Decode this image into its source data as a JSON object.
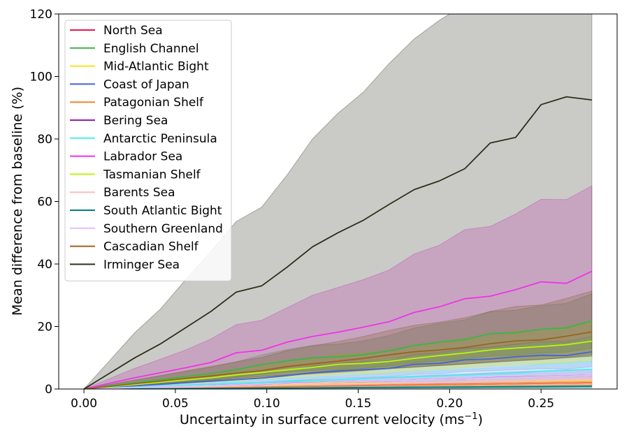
{
  "chart_data": {
    "type": "line",
    "title": "",
    "xlabel": "Uncertainty in surface current velocity (ms",
    "xlabel_superscript": "−1",
    "xlabel_suffix": ")",
    "ylabel": "Mean difference from baseline (%)",
    "xlim": [
      -0.0138,
      0.2916
    ],
    "ylim": [
      0,
      120
    ],
    "x_ticks": [
      0.0,
      0.05,
      0.1,
      0.15,
      0.2,
      0.25
    ],
    "x_tick_labels": [
      "0.00",
      "0.05",
      "0.10",
      "0.15",
      "0.20",
      "0.25"
    ],
    "y_ticks": [
      0,
      20,
      40,
      60,
      80,
      100,
      120
    ],
    "y_tick_labels": [
      "0",
      "20",
      "40",
      "60",
      "80",
      "100",
      "120"
    ],
    "grid": false,
    "legend_position": "top-left",
    "x": [
      0.0,
      0.0139,
      0.0278,
      0.0417,
      0.0556,
      0.0694,
      0.0833,
      0.0972,
      0.1111,
      0.125,
      0.1389,
      0.1528,
      0.1667,
      0.1806,
      0.1944,
      0.2083,
      0.2222,
      0.2361,
      0.25,
      0.2639,
      0.2778
    ],
    "series": [
      {
        "name": "North Sea",
        "color": "#e6194b",
        "values": [
          0,
          0.1,
          0.2,
          0.3,
          0.4,
          0.5,
          0.6,
          0.7,
          0.8,
          0.9,
          1.0,
          1.1,
          1.2,
          1.3,
          1.4,
          1.5,
          1.6,
          1.7,
          1.8,
          1.9,
          2.0
        ],
        "band_low": [
          0,
          0.05,
          0.1,
          0.15,
          0.2,
          0.25,
          0.3,
          0.35,
          0.4,
          0.45,
          0.5,
          0.55,
          0.6,
          0.65,
          0.7,
          0.75,
          0.8,
          0.85,
          0.9,
          0.95,
          1.0
        ],
        "band_high": [
          0,
          0.2,
          0.4,
          0.5,
          0.6,
          0.8,
          1.0,
          1.1,
          1.2,
          1.4,
          1.5,
          1.7,
          1.8,
          2.0,
          2.1,
          2.3,
          2.4,
          2.6,
          2.7,
          2.9,
          3.0
        ]
      },
      {
        "name": "English Channel",
        "color": "#3cb44b",
        "values": [
          0,
          1.0,
          2.0,
          3.0,
          4.0,
          5.0,
          6.2,
          7.8,
          9.0,
          10.0,
          10.3,
          11.0,
          12.2,
          13.9,
          15.0,
          15.8,
          17.7,
          18.0,
          19.1,
          19.6,
          21.8
        ],
        "band_low": [
          0,
          0.6,
          1.2,
          1.8,
          2.4,
          3.0,
          3.7,
          4.7,
          5.4,
          6.0,
          6.2,
          6.6,
          7.3,
          8.3,
          9.0,
          9.5,
          10.6,
          10.8,
          11.5,
          11.8,
          13.1
        ],
        "band_high": [
          0,
          1.4,
          2.8,
          4.2,
          5.6,
          7.0,
          8.7,
          10.9,
          12.6,
          14.0,
          14.4,
          15.4,
          17.1,
          19.5,
          21.0,
          22.1,
          24.8,
          25.2,
          26.7,
          27.4,
          30.5
        ]
      },
      {
        "name": "Mid-Atlantic Bight",
        "color": "#ffe119",
        "values": [
          0,
          0.2,
          0.4,
          0.6,
          0.8,
          1.0,
          1.2,
          1.4,
          1.5,
          1.6,
          1.7,
          1.8,
          1.9,
          2.0,
          2.1,
          2.2,
          2.3,
          2.4,
          2.5,
          2.6,
          2.7
        ],
        "band_low": [
          0,
          0.1,
          0.2,
          0.3,
          0.4,
          0.5,
          0.6,
          0.7,
          0.8,
          0.8,
          0.9,
          0.9,
          1.0,
          1.0,
          1.1,
          1.1,
          1.2,
          1.2,
          1.3,
          1.3,
          1.4
        ],
        "band_high": [
          0,
          0.3,
          0.6,
          0.9,
          1.2,
          1.5,
          1.8,
          2.1,
          2.3,
          2.4,
          2.6,
          2.7,
          2.9,
          3.0,
          3.2,
          3.3,
          3.5,
          3.6,
          3.8,
          3.9,
          4.1
        ]
      },
      {
        "name": "Coast of Japan",
        "color": "#4363d8",
        "values": [
          0,
          0.5,
          1.0,
          1.5,
          2.0,
          2.5,
          3.0,
          3.5,
          4.3,
          5.2,
          5.8,
          6.2,
          6.6,
          7.9,
          8.2,
          9.3,
          9.6,
          10.3,
          10.8,
          10.7,
          11.9
        ],
        "band_low": [
          0,
          0.3,
          0.6,
          0.9,
          1.2,
          1.5,
          1.8,
          2.1,
          2.6,
          3.1,
          3.5,
          3.7,
          4.0,
          4.7,
          4.9,
          5.6,
          5.8,
          6.2,
          6.5,
          6.4,
          7.1
        ],
        "band_high": [
          0,
          0.7,
          1.4,
          2.1,
          2.8,
          3.5,
          4.2,
          4.9,
          6.0,
          7.3,
          8.1,
          8.7,
          9.2,
          11.1,
          11.5,
          13.0,
          13.4,
          14.4,
          15.1,
          15.0,
          16.7
        ]
      },
      {
        "name": "Patagonian Shelf",
        "color": "#f58231",
        "values": [
          0,
          0.1,
          0.2,
          0.3,
          0.4,
          0.5,
          0.6,
          0.7,
          0.8,
          0.9,
          1.0,
          1.1,
          1.2,
          1.3,
          1.4,
          1.5,
          1.6,
          1.7,
          1.8,
          1.9,
          2.0
        ],
        "band_low": [
          0,
          0.05,
          0.1,
          0.15,
          0.2,
          0.25,
          0.3,
          0.35,
          0.4,
          0.45,
          0.5,
          0.55,
          0.6,
          0.65,
          0.7,
          0.75,
          0.8,
          0.85,
          0.9,
          0.95,
          1.0
        ],
        "band_high": [
          0,
          0.2,
          0.3,
          0.5,
          0.6,
          0.8,
          0.9,
          1.1,
          1.2,
          1.4,
          1.5,
          1.7,
          1.8,
          2.0,
          2.1,
          2.3,
          2.4,
          2.6,
          2.7,
          2.9,
          3.0
        ]
      },
      {
        "name": "Bering Sea",
        "color": "#911eb4",
        "values": [
          0,
          0.25,
          0.5,
          0.7,
          0.9,
          1.1,
          1.3,
          1.5,
          1.8,
          2.0,
          2.2,
          2.4,
          2.6,
          2.9,
          3.1,
          3.3,
          3.6,
          3.8,
          4.0,
          4.2,
          4.4
        ],
        "band_low": [
          0,
          0.15,
          0.3,
          0.4,
          0.5,
          0.6,
          0.7,
          0.8,
          1.0,
          1.1,
          1.2,
          1.3,
          1.4,
          1.6,
          1.7,
          1.8,
          2.0,
          2.1,
          2.2,
          2.3,
          2.4
        ],
        "band_high": [
          0,
          0.35,
          0.7,
          1.0,
          1.3,
          1.6,
          1.9,
          2.2,
          2.6,
          2.9,
          3.2,
          3.5,
          3.8,
          4.2,
          4.5,
          4.8,
          5.2,
          5.5,
          5.8,
          6.1,
          6.4
        ]
      },
      {
        "name": "Antarctic Peninsula",
        "color": "#46f0f0",
        "values": [
          0,
          0.3,
          0.6,
          0.9,
          1.2,
          1.5,
          1.8,
          2.1,
          2.4,
          2.7,
          3.0,
          3.3,
          3.6,
          3.9,
          4.2,
          4.5,
          4.8,
          5.1,
          5.7,
          6.0,
          6.3
        ],
        "band_low": [
          0,
          0.2,
          0.4,
          0.5,
          0.7,
          0.9,
          1.1,
          1.3,
          1.4,
          1.6,
          1.8,
          2.0,
          2.2,
          2.3,
          2.5,
          2.7,
          2.9,
          3.1,
          3.4,
          3.6,
          3.8
        ],
        "band_high": [
          0,
          0.4,
          0.8,
          1.3,
          1.7,
          2.1,
          2.5,
          2.9,
          3.4,
          3.8,
          4.2,
          4.6,
          5.0,
          5.5,
          5.9,
          6.3,
          6.7,
          7.1,
          8.0,
          8.4,
          8.8
        ]
      },
      {
        "name": "Labrador Sea",
        "color": "#f032e6",
        "values": [
          0,
          1.8,
          3.6,
          5.2,
          6.8,
          8.5,
          11.6,
          12.4,
          15.0,
          16.8,
          18.2,
          19.8,
          21.5,
          24.5,
          26.3,
          28.9,
          29.7,
          31.8,
          34.3,
          33.8,
          37.7
        ],
        "band_low": [
          0,
          0.8,
          1.6,
          2.3,
          3.0,
          3.8,
          5.2,
          5.6,
          6.8,
          7.6,
          8.2,
          8.9,
          9.7,
          11.0,
          11.8,
          13.0,
          13.4,
          14.3,
          15.4,
          15.2,
          17.0
        ],
        "band_high": [
          0,
          3.3,
          6.6,
          9.5,
          12.5,
          16.0,
          20.6,
          22.0,
          26.0,
          30.0,
          32.5,
          35.0,
          38.0,
          43.2,
          46.0,
          51.0,
          52.0,
          56.0,
          60.7,
          60.6,
          65.0
        ]
      },
      {
        "name": "Tasmanian Shelf",
        "color": "#bcf60c",
        "values": [
          0,
          0.7,
          1.4,
          2.2,
          2.9,
          3.6,
          4.5,
          5.3,
          6.1,
          6.9,
          7.9,
          8.2,
          8.8,
          9.8,
          10.7,
          11.5,
          12.5,
          13.1,
          13.6,
          14.2,
          15.3
        ],
        "band_low": [
          0,
          0.4,
          0.8,
          1.3,
          1.7,
          2.1,
          2.6,
          3.1,
          3.6,
          4.1,
          4.7,
          4.9,
          5.2,
          5.8,
          6.3,
          6.8,
          7.4,
          7.8,
          8.1,
          8.4,
          9.1
        ],
        "band_high": [
          0,
          1.0,
          2.0,
          3.1,
          4.1,
          5.1,
          6.4,
          7.5,
          8.6,
          9.7,
          11.1,
          11.5,
          12.4,
          13.8,
          15.1,
          16.2,
          17.6,
          18.4,
          19.1,
          20.0,
          21.5
        ]
      },
      {
        "name": "Barents Sea",
        "color": "#fabebe",
        "values": [
          0,
          0.15,
          0.3,
          0.45,
          0.6,
          0.75,
          0.9,
          1.05,
          1.2,
          1.35,
          1.5,
          1.65,
          1.8,
          1.95,
          2.1,
          2.25,
          2.4,
          2.55,
          2.7,
          2.85,
          3.0
        ],
        "band_low": [
          0,
          0.07,
          0.15,
          0.22,
          0.3,
          0.37,
          0.45,
          0.52,
          0.6,
          0.67,
          0.75,
          0.82,
          0.9,
          0.97,
          1.05,
          1.12,
          1.2,
          1.27,
          1.35,
          1.42,
          1.5
        ],
        "band_high": [
          0,
          0.22,
          0.45,
          0.67,
          0.9,
          1.12,
          1.35,
          1.57,
          1.8,
          2.02,
          2.25,
          2.47,
          2.7,
          2.92,
          3.15,
          3.37,
          3.6,
          3.82,
          4.05,
          4.27,
          4.5
        ]
      },
      {
        "name": "South Atlantic Bight",
        "color": "#008080",
        "values": [
          0,
          0.04,
          0.08,
          0.12,
          0.16,
          0.2,
          0.24,
          0.28,
          0.32,
          0.36,
          0.4,
          0.44,
          0.48,
          0.52,
          0.56,
          0.6,
          0.64,
          0.68,
          0.72,
          0.76,
          0.8
        ],
        "band_low": [
          0,
          0.02,
          0.04,
          0.06,
          0.08,
          0.1,
          0.12,
          0.14,
          0.16,
          0.18,
          0.2,
          0.22,
          0.24,
          0.26,
          0.28,
          0.3,
          0.32,
          0.34,
          0.36,
          0.38,
          0.4
        ],
        "band_high": [
          0,
          0.06,
          0.12,
          0.18,
          0.24,
          0.3,
          0.36,
          0.42,
          0.48,
          0.54,
          0.6,
          0.66,
          0.72,
          0.78,
          0.84,
          0.9,
          0.96,
          1.02,
          1.08,
          1.14,
          1.2
        ]
      },
      {
        "name": "Southern Greenland",
        "color": "#e6beff",
        "values": [
          0,
          0.22,
          0.44,
          0.66,
          0.88,
          1.1,
          1.32,
          1.54,
          1.76,
          1.98,
          2.2,
          2.42,
          2.64,
          2.86,
          3.08,
          3.3,
          3.52,
          3.74,
          3.96,
          4.18,
          4.4
        ],
        "band_low": [
          0,
          0.11,
          0.22,
          0.33,
          0.44,
          0.55,
          0.66,
          0.77,
          0.88,
          0.99,
          1.1,
          1.21,
          1.32,
          1.43,
          1.54,
          1.65,
          1.76,
          1.87,
          1.98,
          2.09,
          2.2
        ],
        "band_high": [
          0,
          0.4,
          0.8,
          1.2,
          1.6,
          2.0,
          2.4,
          2.8,
          3.2,
          3.6,
          4.0,
          4.4,
          4.8,
          5.2,
          5.6,
          6.0,
          6.4,
          6.8,
          7.2,
          7.6,
          8.0
        ]
      },
      {
        "name": "Cascadian Shelf",
        "color": "#9a6324",
        "values": [
          0,
          0.8,
          1.7,
          2.5,
          3.4,
          4.2,
          5.1,
          5.9,
          7.2,
          8.1,
          8.9,
          9.8,
          10.9,
          11.9,
          12.5,
          13.3,
          14.5,
          15.4,
          15.7,
          16.9,
          18.3
        ],
        "band_low": [
          0,
          0.5,
          1.0,
          1.5,
          2.0,
          2.5,
          3.0,
          3.5,
          4.3,
          4.8,
          5.3,
          5.8,
          6.5,
          7.1,
          7.5,
          8.0,
          8.7,
          9.2,
          9.4,
          10.1,
          11.0
        ],
        "band_high": [
          0,
          1.4,
          2.9,
          4.3,
          5.8,
          7.2,
          8.7,
          10.1,
          12.3,
          13.8,
          15.2,
          16.8,
          18.7,
          20.4,
          21.4,
          22.8,
          24.8,
          26.4,
          26.9,
          29.0,
          31.4
        ]
      },
      {
        "name": "Irminger Sea",
        "color": "#2b2f1b",
        "values": [
          0,
          5.0,
          10.0,
          14.4,
          19.6,
          24.8,
          31.0,
          33.0,
          39.0,
          45.5,
          50.0,
          54.0,
          59.0,
          63.8,
          66.6,
          70.5,
          78.7,
          80.5,
          91.0,
          93.5,
          92.5
        ],
        "band_low": [
          0,
          0.5,
          1.0,
          1.6,
          2.2,
          2.8,
          3.4,
          4.0,
          4.5,
          5.0,
          5.5,
          6.0,
          6.5,
          7.0,
          7.5,
          8.0,
          8.5,
          9.0,
          9.5,
          10.0,
          10.5
        ],
        "band_high": [
          0,
          9.0,
          18.0,
          25.5,
          35.0,
          44.0,
          53.6,
          58.2,
          68.5,
          80.0,
          88.2,
          95.0,
          104.0,
          112.0,
          118.0,
          123.0,
          130.0,
          135.0,
          140.0,
          145.0,
          150.0
        ]
      }
    ]
  }
}
